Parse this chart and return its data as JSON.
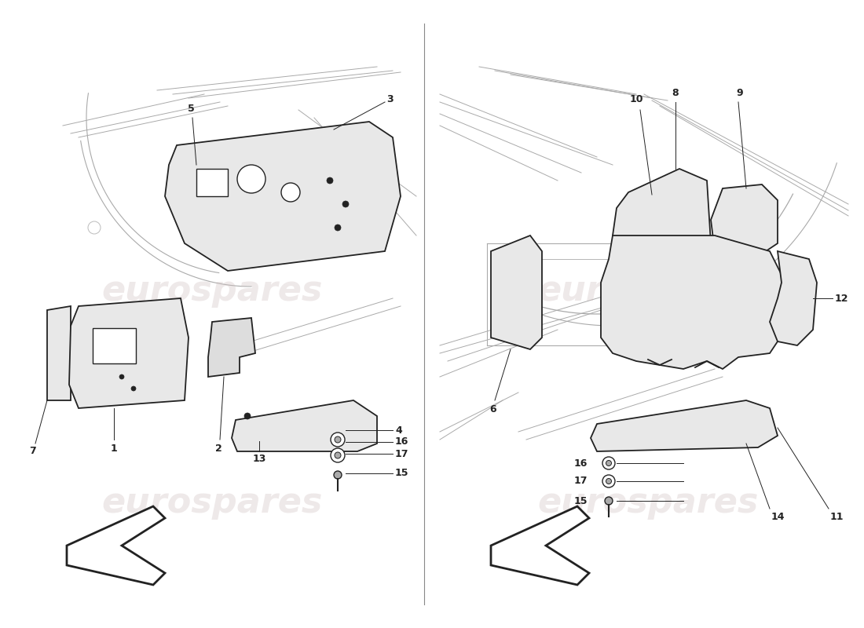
{
  "background_color": "#ffffff",
  "watermark_text": "eurospares",
  "watermark_color": "#d0c0c0",
  "watermark_alpha": 0.35,
  "line_color": "#222222",
  "fill_color": "#e8e8e8",
  "label_fontsize": 9,
  "divider_color": "#888888"
}
